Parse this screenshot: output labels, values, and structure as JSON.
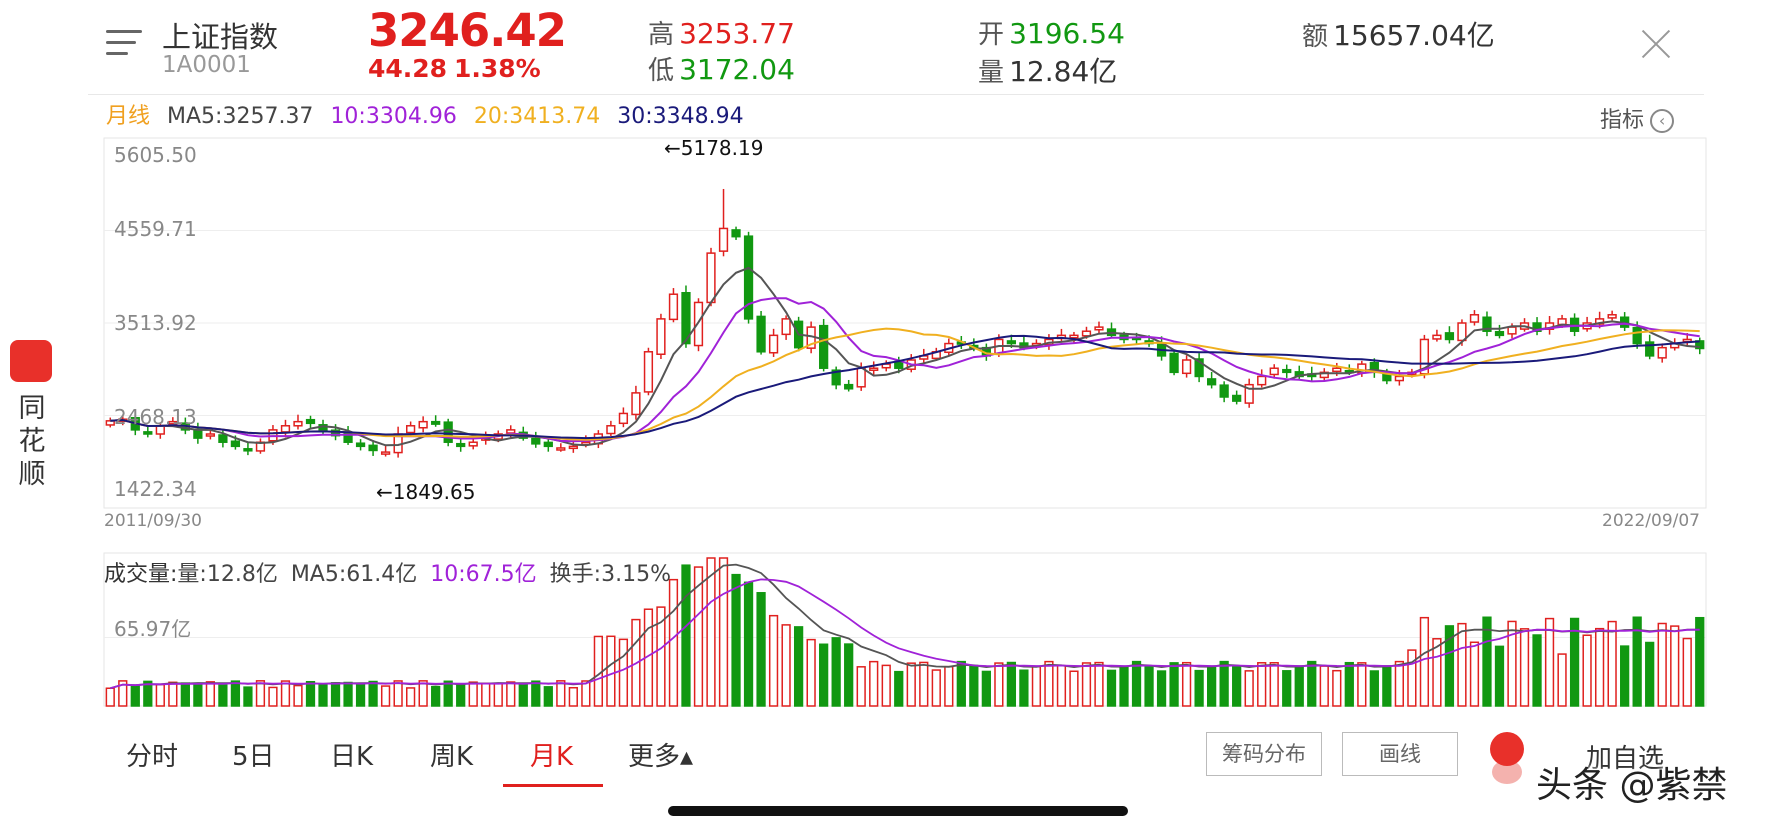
{
  "header": {
    "name": "上证指数",
    "code": "1A0001",
    "price": "3246.42",
    "change": "44.28",
    "change_pct": "1.38%",
    "high_label": "高",
    "high": "3253.77",
    "low_label": "低",
    "low": "3172.04",
    "open_label": "开",
    "open": "3196.54",
    "volume_label": "量",
    "volume": "12.84亿",
    "amount_label": "额",
    "amount": "15657.04亿"
  },
  "ma_bar": {
    "period": "月线",
    "ma5": "MA5:3257.37",
    "ma10": "10:3304.96",
    "ma20": "20:3413.74",
    "ma30": "30:3348.94",
    "indicator_btn": "指标"
  },
  "kline": {
    "y_ticks": [
      "5605.50",
      "4559.71",
      "3513.92",
      "2468.13",
      "1422.34"
    ],
    "y_values": [
      5605.5,
      4559.71,
      3513.92,
      2468.13,
      1422.34
    ],
    "start_date": "2011/09/30",
    "end_date": "2022/09/07",
    "high_annotation": "←5178.19",
    "low_annotation": "←1849.65",
    "high_value": 5178.19,
    "low_value": 1849.65
  },
  "volume_panel": {
    "title": "成交量:",
    "vol": "量:12.8亿",
    "ma5": "MA5:61.4亿",
    "ma10": "10:67.5亿",
    "turnover": "换手:3.15%",
    "y_tick": "65.97亿"
  },
  "side_logo": {
    "text": "同花顺"
  },
  "tabs": [
    {
      "label": "分时"
    },
    {
      "label": "5日"
    },
    {
      "label": "日K"
    },
    {
      "label": "周K"
    },
    {
      "label": "月K"
    },
    {
      "label": "更多▴"
    }
  ],
  "buttons": {
    "chip": "筹码分布",
    "draw": "画线",
    "favorite": "加自选"
  },
  "watermark": "头条 @紫禁",
  "colors": {
    "up": "#e0201e",
    "down": "#119811",
    "ma5": "#555555",
    "ma10": "#a022d8",
    "ma20": "#f0b020",
    "ma30": "#1a1a7a"
  },
  "chart_data": {
    "type": "candlestick",
    "x_start": "2011/09/30",
    "x_end": "2022/09/07",
    "close": [
      2360,
      2380,
      2250,
      2200,
      2300,
      2350,
      2250,
      2150,
      2200,
      2100,
      2050,
      2000,
      2100,
      2250,
      2300,
      2350,
      2330,
      2240,
      2180,
      2100,
      2050,
      2000,
      1980,
      2200,
      2300,
      2350,
      2320,
      2100,
      2050,
      2100,
      2150,
      2200,
      2250,
      2150,
      2080,
      2050,
      2030,
      2050,
      2100,
      2200,
      2300,
      2450,
      2700,
      3200,
      3600,
      3900,
      3300,
      3800,
      4400,
      4700,
      4600,
      3600,
      3200,
      3400,
      3600,
      3250,
      3500,
      3000,
      2800,
      2750,
      3000,
      3000,
      3050,
      3000,
      3100,
      3150,
      3200,
      3300,
      3300,
      3250,
      3150,
      3350,
      3300,
      3250,
      3300,
      3350,
      3400,
      3400,
      3450,
      3500,
      3400,
      3350,
      3350,
      3300,
      3150,
      2950,
      3100,
      2900,
      2800,
      2650,
      2600,
      2800,
      2900,
      3000,
      2950,
      2900,
      2900,
      2950,
      3000,
      2950,
      3050,
      2950,
      2850,
      2900,
      2950,
      3350,
      3400,
      3350,
      3550,
      3650,
      3450,
      3400,
      3500,
      3550,
      3450,
      3550,
      3600,
      3450,
      3550,
      3600,
      3650,
      3500,
      3300,
      3150,
      3250,
      3300,
      3350,
      3240
    ],
    "volume_scale": "65.97亿"
  }
}
